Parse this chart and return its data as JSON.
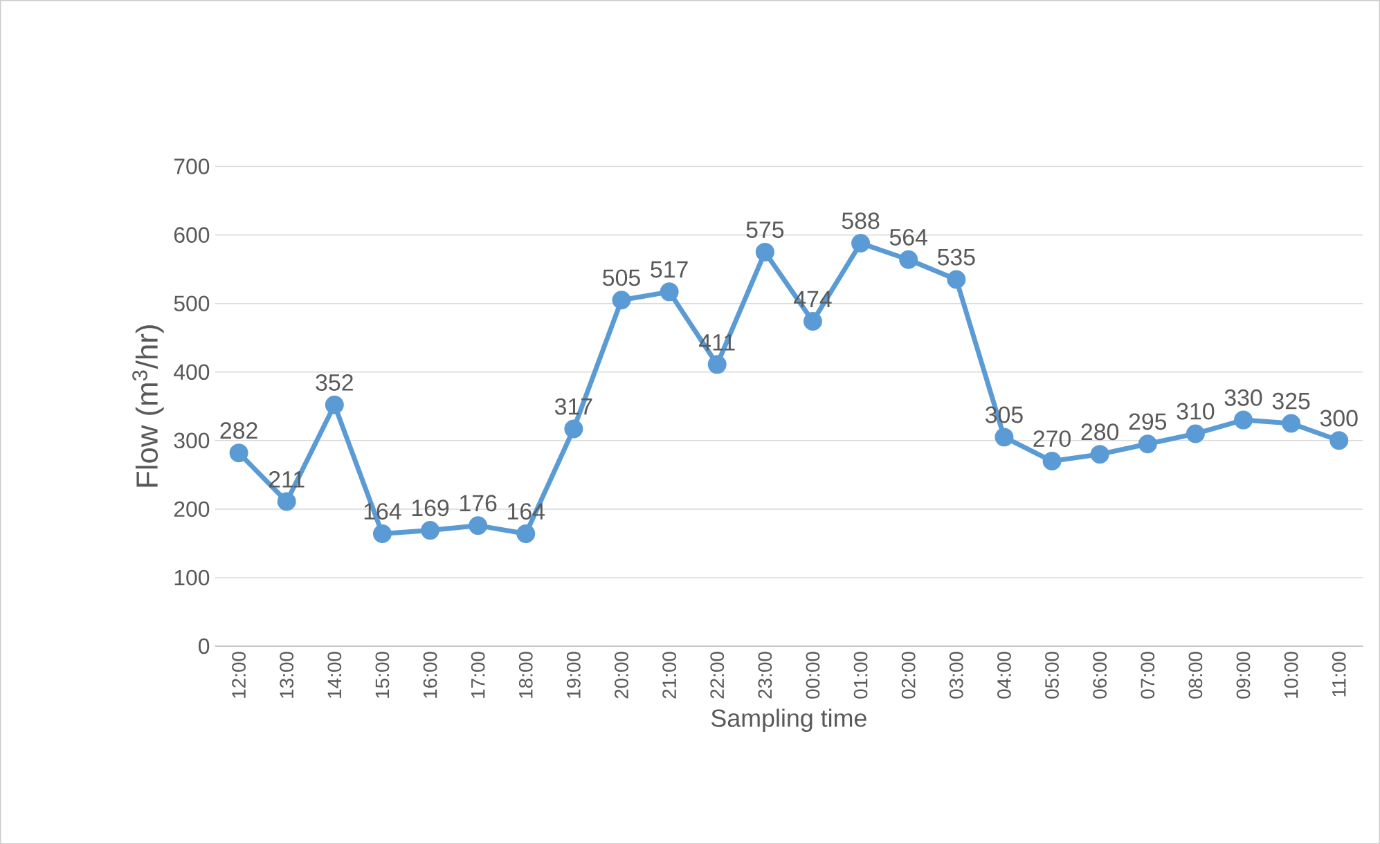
{
  "chart_data": {
    "type": "line",
    "xlabel": "Sampling time",
    "ylabel": "Flow (m$^{3}$/hr)",
    "categories": [
      "12:00",
      "13:00",
      "14:00",
      "15:00",
      "16:00",
      "17:00",
      "18:00",
      "19:00",
      "20:00",
      "21:00",
      "22:00",
      "23:00",
      "00:00",
      "01:00",
      "02:00",
      "03:00",
      "04:00",
      "05:00",
      "06:00",
      "07:00",
      "08:00",
      "09:00",
      "10:00",
      "11:00"
    ],
    "values": [
      282,
      211,
      352,
      164,
      169,
      176,
      164,
      317,
      505,
      517,
      411,
      575,
      474,
      588,
      564,
      535,
      305,
      270,
      280,
      295,
      310,
      330,
      325,
      300
    ],
    "color": "#5b9bd5",
    "marker": "circle",
    "line_style": "solid",
    "data_labels": true,
    "grid": "y",
    "ylim": [
      0,
      700
    ],
    "yticks": [
      0,
      100,
      200,
      300,
      400,
      500,
      600,
      700
    ]
  }
}
